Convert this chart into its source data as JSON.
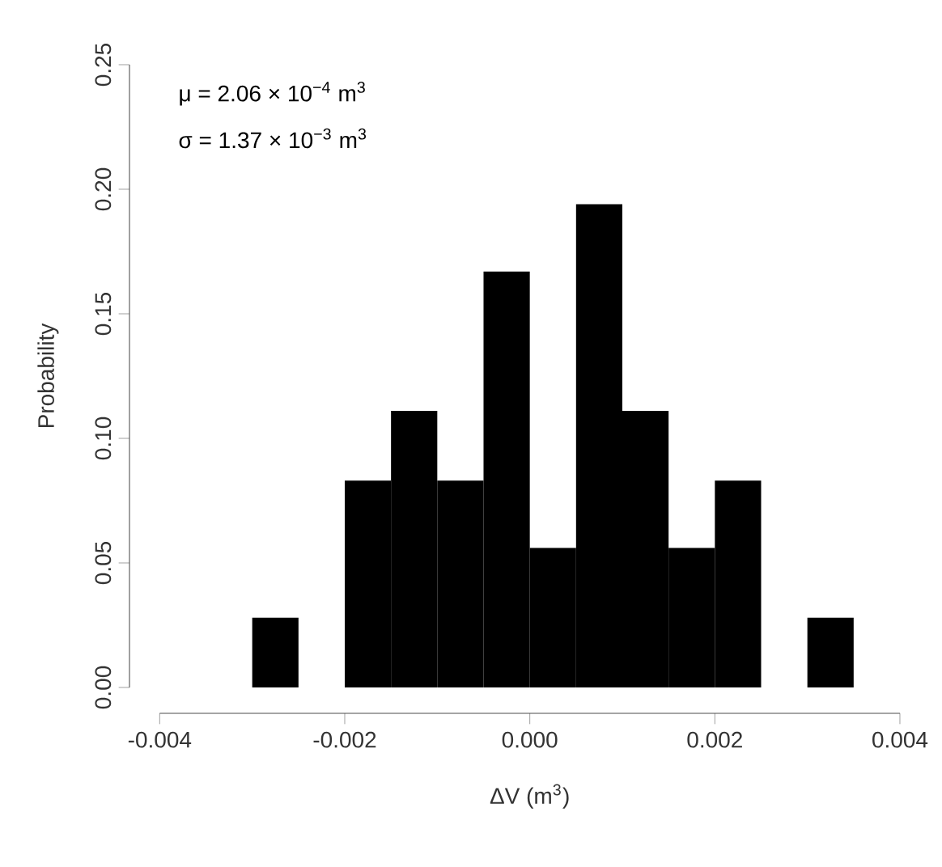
{
  "chart_data": {
    "type": "histogram",
    "xlabel": "ΔV (m$^{3}$)",
    "ylabel": "Probability",
    "bins": [
      -0.003,
      -0.0025,
      -0.002,
      -0.0015,
      -0.001,
      -0.0005,
      0,
      0.0005,
      0.001,
      0.0015,
      0.002,
      0.0025,
      0.003,
      0.0035
    ],
    "values": [
      0.028,
      0,
      0.083,
      0.111,
      0.083,
      0.167,
      0.056,
      0.194,
      0.111,
      0.056,
      0.083,
      0,
      0.028
    ],
    "color": "#000000",
    "xlim": [
      -0.004,
      0.004
    ],
    "ylim": [
      0,
      0.25
    ],
    "xticks": [
      {
        "value": -0.004,
        "label": "-0.004"
      },
      {
        "value": -0.002,
        "label": "-0.002"
      },
      {
        "value": 0,
        "label": "0.000"
      },
      {
        "value": 0.002,
        "label": "0.002"
      },
      {
        "value": 0.004,
        "label": "0.004"
      }
    ],
    "yticks": [
      {
        "value": 0,
        "label": "0.00"
      },
      {
        "value": 0.05,
        "label": "0.05"
      },
      {
        "value": 0.1,
        "label": "0.10"
      },
      {
        "value": 0.15,
        "label": "0.15"
      },
      {
        "value": 0.2,
        "label": "0.20"
      },
      {
        "value": 0.25,
        "label": "0.25"
      }
    ],
    "annotations": [
      "μ = 2.06 × 10$^{−4}$ m$^{3}$",
      "σ = 1.37 × 10$^{−3}$ m$^{3}$"
    ]
  }
}
